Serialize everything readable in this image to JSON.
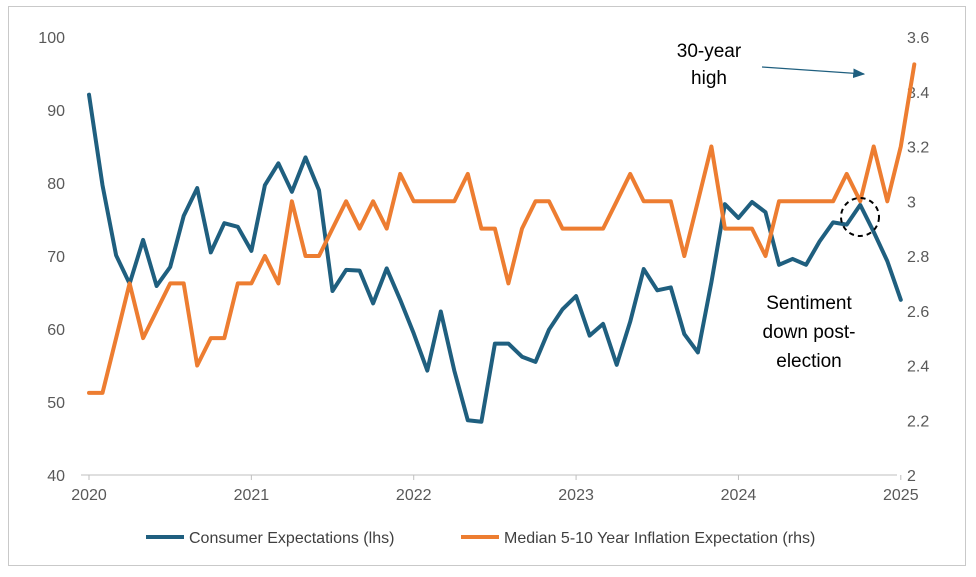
{
  "chart_data": {
    "type": "line",
    "title": "",
    "x_ticks": [
      "2020",
      "2021",
      "2022",
      "2023",
      "2024",
      "2025"
    ],
    "y_left": {
      "label": "",
      "ylim": [
        40,
        100
      ],
      "ticks": [
        "40",
        "50",
        "60",
        "70",
        "80",
        "90",
        "100"
      ]
    },
    "y_right": {
      "label": "",
      "ylim": [
        2,
        3.6
      ],
      "ticks": [
        "2",
        "2.2",
        "2.4",
        "2.6",
        "2.8",
        "3",
        "3.2",
        "3.4",
        "3.6"
      ]
    },
    "grid": false,
    "legend_position": "bottom",
    "series": [
      {
        "name": "Consumer Expectations (lhs)",
        "axis": "left",
        "color": "#1f5f7f",
        "x_start": "2020-01",
        "frequency": "monthly",
        "values": [
          92.1,
          79.7,
          70.1,
          66.2,
          72.2,
          65.9,
          68.5,
          75.5,
          79.3,
          70.5,
          74.5,
          74.0,
          70.7,
          79.7,
          82.7,
          78.8,
          83.5,
          79.0,
          65.2,
          68.1,
          68.0,
          63.5,
          68.3,
          64.0,
          59.4,
          54.3,
          62.4,
          54.3,
          47.5,
          47.3,
          58.0,
          58.0,
          56.2,
          55.5,
          59.9,
          62.7,
          64.5,
          59.1,
          60.7,
          55.1,
          61.0,
          68.2,
          65.3,
          65.7,
          59.3,
          56.8,
          66.4,
          77.1,
          75.2,
          77.4,
          76.0,
          68.8,
          69.6,
          68.8,
          72.0,
          74.6,
          74.3,
          77.0,
          73.3,
          69.3,
          64.0
        ]
      },
      {
        "name": "Median 5-10 Year Inflation Expectation (rhs)",
        "axis": "right",
        "color": "#ed7d31",
        "x_start": "2020-01",
        "frequency": "monthly",
        "values": [
          2.3,
          2.3,
          2.5,
          2.7,
          2.5,
          2.6,
          2.7,
          2.7,
          2.4,
          2.5,
          2.5,
          2.7,
          2.7,
          2.8,
          2.7,
          3.0,
          2.8,
          2.8,
          2.9,
          3.0,
          2.9,
          3.0,
          2.9,
          3.1,
          3.0,
          3.0,
          3.0,
          3.0,
          3.1,
          2.9,
          2.9,
          2.7,
          2.9,
          3.0,
          3.0,
          2.9,
          2.9,
          2.9,
          2.9,
          3.0,
          3.1,
          3.0,
          3.0,
          3.0,
          2.8,
          3.0,
          3.2,
          2.9,
          2.9,
          2.9,
          2.8,
          3.0,
          3.0,
          3.0,
          3.0,
          3.0,
          3.1,
          3.0,
          3.2,
          3.0,
          3.2,
          3.5
        ]
      }
    ],
    "annotations": [
      {
        "text_lines": [
          "30-year",
          "high"
        ],
        "arrow": true
      },
      {
        "text_lines": [
          "Sentiment",
          "down post-",
          "election"
        ],
        "circle_marker": true
      }
    ]
  }
}
